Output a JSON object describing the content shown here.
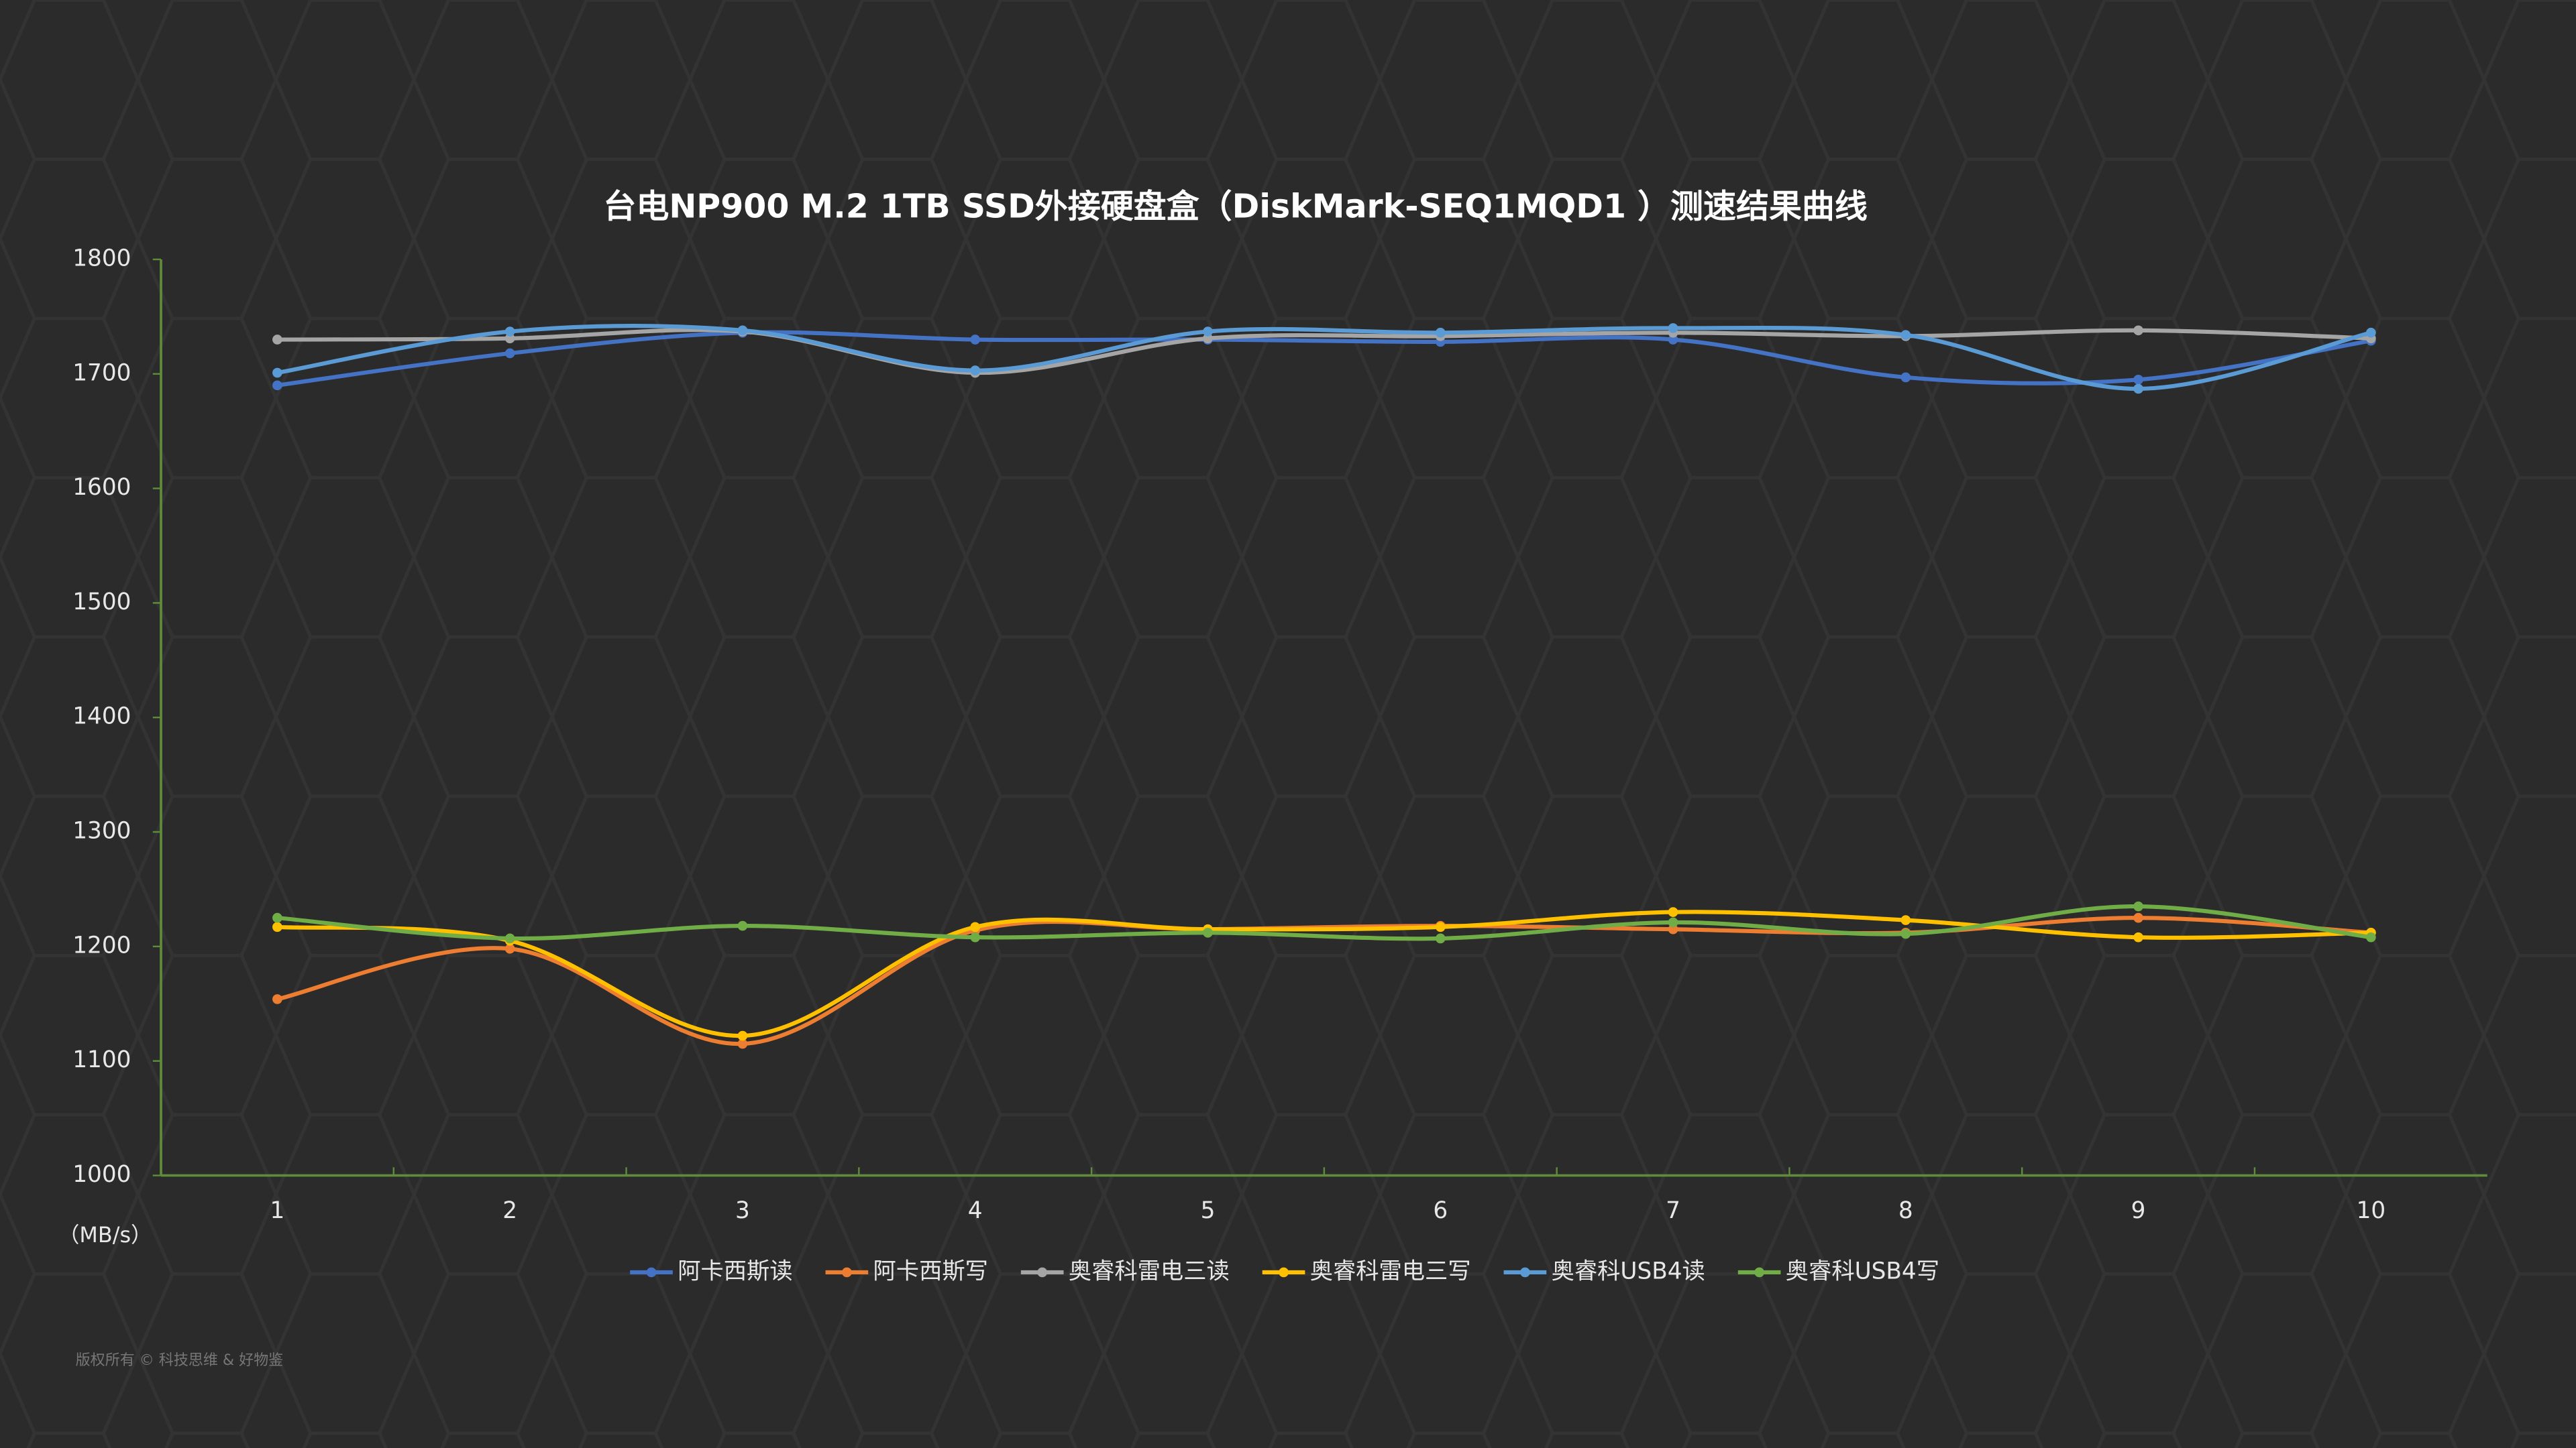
{
  "chart_data": {
    "type": "line",
    "title": "台电NP900 M.2 1TB SSD外接硬盘盒（DiskMark-SEQ1MQD1 ）测速结果曲线",
    "y_label": "（MB/s）",
    "footnote": "版权所有 © 科技思维 & 好物鉴",
    "categories": [
      "1",
      "2",
      "3",
      "4",
      "5",
      "6",
      "7",
      "8",
      "9",
      "10"
    ],
    "ylim": [
      1000,
      1800
    ],
    "yticks": [
      1000,
      1100,
      1200,
      1300,
      1400,
      1500,
      1600,
      1700,
      1800
    ],
    "grid": false,
    "smooth": true,
    "legend": "bottom",
    "series": [
      {
        "name": "阿卡西斯读",
        "color": "#4472c4",
        "values": [
          1690,
          1718,
          1736,
          1730,
          1730,
          1728,
          1730,
          1697,
          1695,
          1729
        ]
      },
      {
        "name": "阿卡西斯写",
        "color": "#ed7d31",
        "values": [
          1154,
          1198,
          1115,
          1214,
          1215,
          1218,
          1215,
          1212,
          1225,
          1212
        ]
      },
      {
        "name": "奥睿科雷电三读",
        "color": "#a5a5a5",
        "values": [
          1730,
          1731,
          1737,
          1701,
          1731,
          1733,
          1736,
          1733,
          1738,
          1731
        ]
      },
      {
        "name": "奥睿科雷电三写",
        "color": "#ffc000",
        "values": [
          1217,
          1205,
          1122,
          1217,
          1215,
          1217,
          1230,
          1223,
          1208,
          1212
        ]
      },
      {
        "name": "奥睿科USB4读",
        "color": "#5b9bd5",
        "values": [
          1701,
          1737,
          1738,
          1703,
          1737,
          1736,
          1740,
          1734,
          1687,
          1736
        ]
      },
      {
        "name": "奥睿科USB4写",
        "color": "#70ad47",
        "values": [
          1225,
          1207,
          1218,
          1208,
          1212,
          1207,
          1221,
          1211,
          1235,
          1208
        ]
      }
    ]
  }
}
